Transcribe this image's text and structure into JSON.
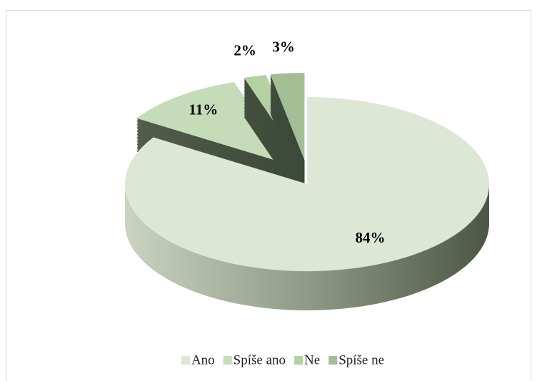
{
  "chart_data": {
    "type": "pie",
    "categories": [
      "Ano",
      "Spíše ano",
      "Ne",
      "Spíše ne"
    ],
    "values": [
      84,
      11,
      2,
      3
    ],
    "value_labels": [
      "84%",
      "11%",
      "2%",
      "3%"
    ],
    "colors": [
      "#dde7d5",
      "#c6dbb8",
      "#b3d1a3",
      "#a3be95"
    ],
    "legend": "bottom"
  }
}
